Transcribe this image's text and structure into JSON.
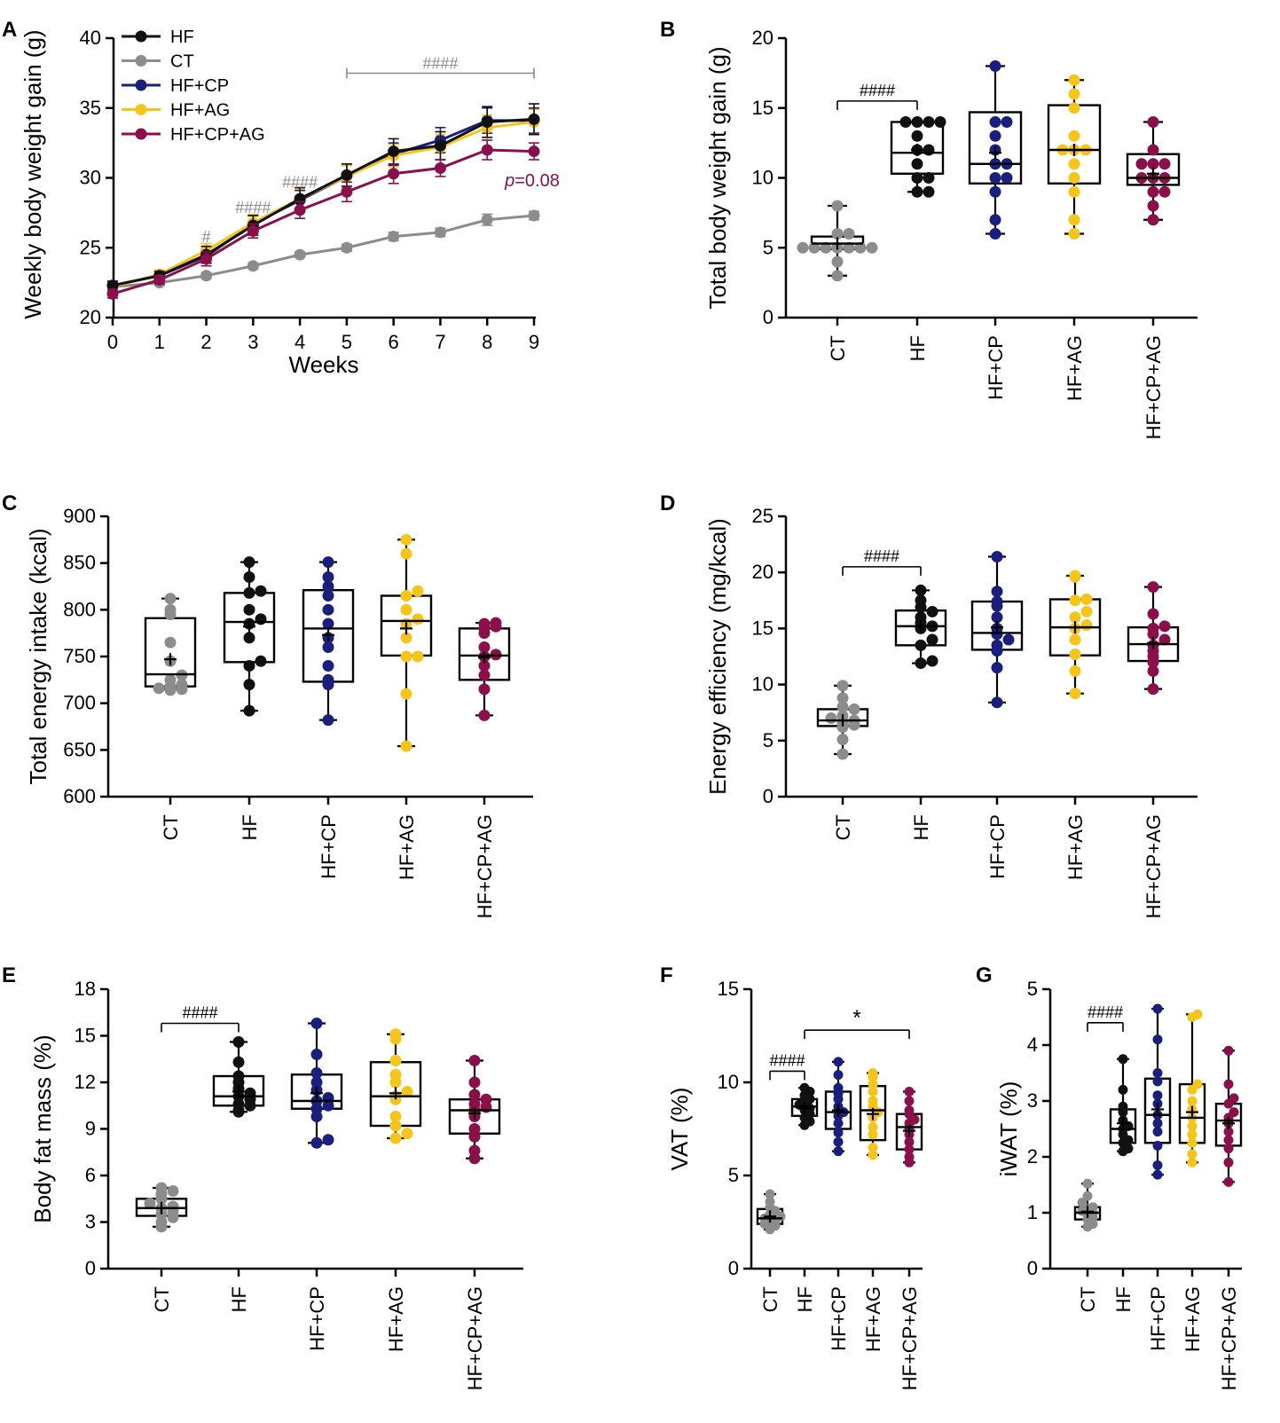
{
  "colors": {
    "HF": "#111111",
    "CT": "#8c8c8c",
    "HF+CP": "#1a1f7d",
    "HF+AG": "#f5c518",
    "HF+CP+AG": "#8b0f48",
    "sig": "#8c8c8c"
  },
  "chart_data": [
    {
      "panel": "A",
      "type": "line",
      "xlabel": "Weeks",
      "ylabel": "Weekly body weight gain (g)",
      "xlim": [
        0,
        9
      ],
      "ylim": [
        20,
        40
      ],
      "xticks": [
        "0",
        "1",
        "2",
        "3",
        "4",
        "5",
        "6",
        "7",
        "8",
        "9"
      ],
      "yticks": [
        "20",
        "25",
        "30",
        "35",
        "40"
      ],
      "x": [
        0,
        1,
        2,
        3,
        4,
        5,
        6,
        7,
        8,
        9
      ],
      "series": [
        {
          "name": "CT",
          "color": "CT",
          "values": [
            22.2,
            22.5,
            23.0,
            23.7,
            24.5,
            25.0,
            25.8,
            26.1,
            27.0,
            27.3
          ],
          "err": [
            0.2,
            0.2,
            0.2,
            0.2,
            0.2,
            0.25,
            0.3,
            0.3,
            0.4,
            0.3
          ]
        },
        {
          "name": "HF+CP",
          "color": "HF+CP",
          "values": [
            22.3,
            23.0,
            24.4,
            26.7,
            28.4,
            30.1,
            31.7,
            32.7,
            34.1,
            34.1
          ],
          "err": [
            0.3,
            0.3,
            0.5,
            0.6,
            0.7,
            0.8,
            0.8,
            0.9,
            0.9,
            0.9
          ]
        },
        {
          "name": "HF+AG",
          "color": "HF+AG",
          "values": [
            22.2,
            23.1,
            24.8,
            26.8,
            28.5,
            30.1,
            31.6,
            32.2,
            33.6,
            34.0
          ],
          "err": [
            0.3,
            0.3,
            0.5,
            0.6,
            0.7,
            0.8,
            0.8,
            0.9,
            0.9,
            0.9
          ]
        },
        {
          "name": "HF",
          "color": "HF",
          "values": [
            22.3,
            23.0,
            24.5,
            26.6,
            28.5,
            30.2,
            31.9,
            32.3,
            34.0,
            34.2
          ],
          "err": [
            0.3,
            0.3,
            0.6,
            0.7,
            0.8,
            0.8,
            0.9,
            1.0,
            1.1,
            1.1
          ]
        },
        {
          "name": "HF+CP+AG",
          "color": "HF+CP+AG",
          "values": [
            21.7,
            22.7,
            24.2,
            26.2,
            27.7,
            29.0,
            30.3,
            30.7,
            32.0,
            31.9
          ],
          "err": [
            0.3,
            0.3,
            0.5,
            0.5,
            0.6,
            0.7,
            0.7,
            0.6,
            0.7,
            0.6
          ]
        }
      ],
      "legend": [
        "HF",
        "CT",
        "HF+CP",
        "HF+AG",
        "HF+CP+AG"
      ],
      "annotations": [
        {
          "text": "#",
          "x": 2,
          "y": 25.4
        },
        {
          "text": "####",
          "x": 3,
          "y": 27.5
        },
        {
          "text": "####",
          "x": 4,
          "y": 29.3
        },
        {
          "text": "####",
          "bracket": [
            5,
            9
          ],
          "y": 38.0
        }
      ],
      "p_label_italic": "p",
      "p_label_rest": "=0.08"
    },
    {
      "panel": "B",
      "type": "box",
      "ylabel": "Total body weight gain (g)",
      "ylim": [
        0,
        20
      ],
      "yticks": [
        "0",
        "5",
        "10",
        "15",
        "20"
      ],
      "categories": [
        "CT",
        "HF",
        "HF+CP",
        "HF+AG",
        "HF+CP+AG"
      ],
      "boxes": [
        {
          "min": 3,
          "q1": 4.9,
          "median": 5.3,
          "q3": 5.8,
          "max": 8,
          "mean": 5.3,
          "points": [
            3,
            4,
            5,
            5,
            5,
            5,
            5,
            5,
            5,
            6,
            6,
            8
          ]
        },
        {
          "min": 9,
          "q1": 10.3,
          "median": 11.8,
          "q3": 14,
          "max": 14,
          "mean": 12,
          "points": [
            9,
            9,
            10,
            10,
            11,
            12,
            12,
            13,
            14,
            14,
            14,
            14
          ]
        },
        {
          "min": 6,
          "q1": 9.6,
          "median": 11,
          "q3": 14.7,
          "max": 18,
          "mean": 11.8,
          "points": [
            6,
            7,
            9,
            10,
            10,
            11,
            11,
            12,
            13,
            14,
            14,
            18
          ]
        },
        {
          "min": 6,
          "q1": 9.6,
          "median": 12,
          "q3": 15.2,
          "max": 17,
          "mean": 12,
          "points": [
            6,
            7,
            9,
            10,
            11,
            12,
            12,
            12,
            13,
            15,
            16,
            17
          ]
        },
        {
          "min": 7,
          "q1": 9.5,
          "median": 10,
          "q3": 11.7,
          "max": 14,
          "mean": 10.3,
          "points": [
            7,
            8,
            9,
            9,
            10,
            10,
            10,
            11,
            11,
            11,
            12,
            14
          ]
        }
      ],
      "annotations": [
        {
          "text": "####",
          "bracket": [
            0,
            1
          ],
          "y": 15.5
        }
      ]
    },
    {
      "panel": "C",
      "type": "box",
      "ylabel": "Total energy intake (kcal)",
      "ylim": [
        600,
        900
      ],
      "yticks": [
        "600",
        "650",
        "700",
        "750",
        "800",
        "850",
        "900"
      ],
      "categories": [
        "CT",
        "HF",
        "HF+CP",
        "HF+AG",
        "HF+CP+AG"
      ],
      "boxes": [
        {
          "min": 715,
          "q1": 718,
          "median": 731,
          "q3": 791,
          "max": 812,
          "mean": 747,
          "points": [
            714,
            715,
            716,
            718,
            720,
            725,
            730,
            745,
            765,
            795,
            800,
            812
          ]
        },
        {
          "min": 692,
          "q1": 744,
          "median": 787,
          "q3": 818,
          "max": 851,
          "mean": 782,
          "points": [
            692,
            720,
            740,
            745,
            770,
            785,
            790,
            800,
            818,
            820,
            835,
            851
          ]
        },
        {
          "min": 682,
          "q1": 723,
          "median": 780,
          "q3": 821,
          "max": 851,
          "mean": 773,
          "points": [
            682,
            720,
            725,
            740,
            760,
            770,
            785,
            800,
            815,
            825,
            835,
            851
          ]
        },
        {
          "min": 654,
          "q1": 751,
          "median": 788,
          "q3": 815,
          "max": 875,
          "mean": 780,
          "points": [
            654,
            710,
            750,
            750,
            770,
            785,
            790,
            800,
            815,
            820,
            860,
            875
          ]
        },
        {
          "min": 687,
          "q1": 725,
          "median": 751,
          "q3": 780,
          "max": 786,
          "mean": 749,
          "points": [
            687,
            715,
            730,
            740,
            750,
            752,
            760,
            775,
            780,
            782,
            785,
            786
          ]
        }
      ],
      "annotations": []
    },
    {
      "panel": "D",
      "type": "box",
      "ylabel": "Energy efficiency (mg/kcal)",
      "ylim": [
        0,
        25
      ],
      "yticks": [
        "0",
        "5",
        "10",
        "15",
        "20",
        "25"
      ],
      "categories": [
        "CT",
        "HF",
        "HF+CP",
        "HF+AG",
        "HF+CP+AG"
      ],
      "boxes": [
        {
          "min": 3.8,
          "q1": 6.3,
          "median": 6.8,
          "q3": 7.8,
          "max": 9.9,
          "mean": 6.8,
          "points": [
            3.8,
            5.1,
            6.2,
            6.4,
            6.6,
            6.8,
            7.0,
            7.2,
            7.8,
            8.0,
            8.8,
            9.9
          ]
        },
        {
          "min": 11.9,
          "q1": 13.5,
          "median": 15.2,
          "q3": 16.6,
          "max": 18.4,
          "mean": 15.2,
          "points": [
            11.9,
            12.1,
            13.5,
            14.0,
            15.0,
            15.2,
            15.5,
            16.0,
            16.5,
            16.9,
            17.5,
            18.4
          ]
        },
        {
          "min": 8.4,
          "q1": 13.1,
          "median": 14.6,
          "q3": 17.4,
          "max": 21.4,
          "mean": 15.1,
          "points": [
            8.4,
            11.5,
            13.0,
            13.5,
            14.0,
            14.5,
            15.0,
            16.0,
            17.0,
            17.4,
            18.3,
            21.4
          ]
        },
        {
          "min": 9.2,
          "q1": 12.6,
          "median": 15.1,
          "q3": 17.6,
          "max": 19.7,
          "mean": 15.1,
          "points": [
            9.2,
            11.2,
            12.7,
            14.0,
            15.0,
            15.3,
            16.0,
            16.5,
            17.5,
            17.6,
            19.6,
            19.7
          ]
        },
        {
          "min": 9.6,
          "q1": 12.1,
          "median": 13.6,
          "q3": 15.1,
          "max": 18.7,
          "mean": 13.7,
          "points": [
            9.6,
            11.2,
            12.0,
            12.5,
            13.0,
            13.5,
            14.0,
            14.5,
            15.0,
            15.2,
            16.3,
            18.7
          ]
        }
      ],
      "annotations": [
        {
          "text": "####",
          "bracket": [
            0,
            1
          ],
          "y": 20.5
        }
      ]
    },
    {
      "panel": "E",
      "type": "box",
      "ylabel": "Body fat mass (%)",
      "ylim": [
        0,
        18
      ],
      "yticks": [
        "0",
        "3",
        "6",
        "9",
        "12",
        "15",
        "18"
      ],
      "categories": [
        "CT",
        "HF",
        "HF+CP",
        "HF+AG",
        "HF+CP+AG"
      ],
      "boxes": [
        {
          "min": 2.7,
          "q1": 3.4,
          "median": 3.9,
          "q3": 4.5,
          "max": 5.2,
          "mean": 3.9,
          "points": [
            2.7,
            3.0,
            3.3,
            3.5,
            3.7,
            3.9,
            4.0,
            4.2,
            4.5,
            4.8,
            5.0,
            5.2
          ]
        },
        {
          "min": 10.1,
          "q1": 10.5,
          "median": 11.1,
          "q3": 12.4,
          "max": 14.6,
          "mean": 11.4,
          "points": [
            10.1,
            10.2,
            10.5,
            10.6,
            10.9,
            11.1,
            11.3,
            11.6,
            12.0,
            12.4,
            13.3,
            14.6
          ]
        },
        {
          "min": 8.1,
          "q1": 10.3,
          "median": 10.8,
          "q3": 12.5,
          "max": 15.8,
          "mean": 11.3,
          "points": [
            8.1,
            8.3,
            9.8,
            10.3,
            10.5,
            10.8,
            11.0,
            11.5,
            12.0,
            12.6,
            13.8,
            15.8
          ]
        },
        {
          "min": 8.4,
          "q1": 9.2,
          "median": 11.1,
          "q3": 13.3,
          "max": 15.1,
          "mean": 11.3,
          "points": [
            8.4,
            8.7,
            9.2,
            9.8,
            10.9,
            11.1,
            11.4,
            12.0,
            12.5,
            13.4,
            14.8,
            15.1
          ]
        },
        {
          "min": 7.1,
          "q1": 8.7,
          "median": 10.2,
          "q3": 10.9,
          "max": 13.4,
          "mean": 10.0,
          "points": [
            7.1,
            7.6,
            8.5,
            9.0,
            9.8,
            10.2,
            10.4,
            10.6,
            10.9,
            11.2,
            12.0,
            13.4
          ]
        }
      ],
      "annotations": [
        {
          "text": "####",
          "bracket": [
            0,
            1
          ],
          "y": 15.8
        }
      ]
    },
    {
      "panel": "F",
      "type": "box",
      "ylabel": "VAT (%)",
      "ylim": [
        0,
        15
      ],
      "yticks": [
        "0",
        "5",
        "10",
        "15"
      ],
      "categories": [
        "CT",
        "HF",
        "HF+CP",
        "HF+AG",
        "HF+CP+AG"
      ],
      "boxes": [
        {
          "min": 2.1,
          "q1": 2.4,
          "median": 2.7,
          "q3": 3.2,
          "max": 4.0,
          "mean": 2.8,
          "points": [
            2.1,
            2.3,
            2.4,
            2.5,
            2.6,
            2.7,
            2.8,
            2.9,
            3.1,
            3.3,
            3.6,
            4.0
          ]
        },
        {
          "min": 7.7,
          "q1": 8.2,
          "median": 8.7,
          "q3": 9.1,
          "max": 9.7,
          "mean": 8.6,
          "points": [
            7.7,
            7.9,
            8.1,
            8.3,
            8.5,
            8.6,
            8.8,
            9.0,
            9.1,
            9.3,
            9.5,
            9.7
          ]
        },
        {
          "min": 6.3,
          "q1": 7.5,
          "median": 8.4,
          "q3": 9.5,
          "max": 11.1,
          "mean": 8.5,
          "points": [
            6.3,
            6.8,
            7.3,
            7.8,
            8.2,
            8.4,
            8.7,
            9.1,
            9.4,
            9.7,
            10.4,
            11.1
          ]
        },
        {
          "min": 6.1,
          "q1": 6.9,
          "median": 8.5,
          "q3": 9.8,
          "max": 10.5,
          "mean": 8.3,
          "points": [
            6.1,
            6.5,
            7.2,
            7.6,
            8.1,
            8.4,
            8.7,
            9.0,
            9.5,
            9.9,
            10.3,
            10.5
          ]
        },
        {
          "min": 5.7,
          "q1": 6.4,
          "median": 7.6,
          "q3": 8.3,
          "max": 9.5,
          "mean": 7.4,
          "points": [
            5.7,
            6.0,
            6.4,
            6.8,
            7.2,
            7.5,
            7.8,
            8.0,
            8.3,
            8.5,
            9.0,
            9.5
          ]
        }
      ],
      "annotations": [
        {
          "text": "####",
          "bracket": [
            0,
            1
          ],
          "y": 10.6
        },
        {
          "text": "*",
          "bracket": [
            1,
            4
          ],
          "y": 12.8
        }
      ]
    },
    {
      "panel": "G",
      "type": "box",
      "ylabel": "iWAT (%)",
      "ylim": [
        0,
        5
      ],
      "yticks": [
        "0",
        "1",
        "2",
        "3",
        "4",
        "5"
      ],
      "categories": [
        "CT",
        "HF",
        "HF+CP",
        "HF+AG",
        "HF+CP+AG"
      ],
      "boxes": [
        {
          "min": 0.75,
          "q1": 0.88,
          "median": 1.0,
          "q3": 1.1,
          "max": 1.52,
          "mean": 1.02,
          "points": [
            0.75,
            0.8,
            0.88,
            0.92,
            0.96,
            1.0,
            1.03,
            1.07,
            1.1,
            1.18,
            1.3,
            1.52
          ]
        },
        {
          "min": 2.1,
          "q1": 2.25,
          "median": 2.5,
          "q3": 2.85,
          "max": 3.75,
          "mean": 2.6,
          "points": [
            2.1,
            2.15,
            2.25,
            2.3,
            2.4,
            2.5,
            2.55,
            2.65,
            2.8,
            2.9,
            3.2,
            3.75
          ]
        },
        {
          "min": 1.68,
          "q1": 2.25,
          "median": 2.75,
          "q3": 3.4,
          "max": 4.65,
          "mean": 2.85,
          "points": [
            1.68,
            1.85,
            2.2,
            2.45,
            2.6,
            2.75,
            2.95,
            3.1,
            3.35,
            3.5,
            4.1,
            4.65
          ]
        },
        {
          "min": 1.9,
          "q1": 2.25,
          "median": 2.7,
          "q3": 3.3,
          "max": 4.55,
          "mean": 2.8,
          "points": [
            1.9,
            2.05,
            2.25,
            2.4,
            2.55,
            2.7,
            2.85,
            3.0,
            3.2,
            3.3,
            4.5,
            4.55
          ]
        },
        {
          "min": 1.55,
          "q1": 2.2,
          "median": 2.65,
          "q3": 2.95,
          "max": 3.9,
          "mean": 2.6,
          "points": [
            1.55,
            1.9,
            2.15,
            2.3,
            2.45,
            2.6,
            2.7,
            2.8,
            2.95,
            3.05,
            3.3,
            3.9
          ]
        }
      ],
      "annotations": [
        {
          "text": "####",
          "bracket": [
            0,
            1
          ],
          "y": 4.4
        }
      ]
    }
  ]
}
